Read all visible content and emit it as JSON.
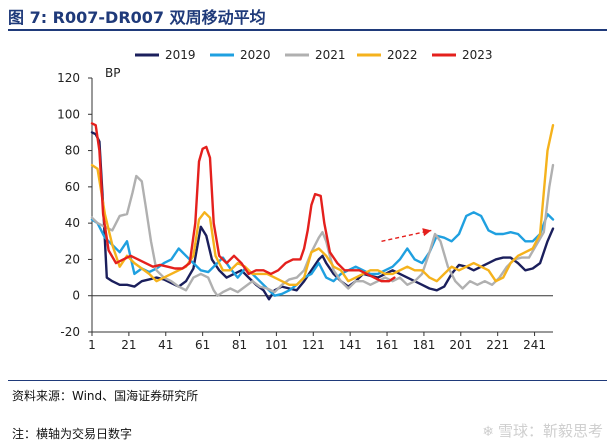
{
  "figure": {
    "title": "图 7:  R007-DR007 双周移动平均",
    "source": "资料来源：Wind、国海证券研究所",
    "note": "注：横轴为交易日数字",
    "watermark": "雪球：靳毅思考"
  },
  "chart_data": {
    "type": "line",
    "unit_label": "BP",
    "ylim": [
      -20,
      120
    ],
    "yticks": [
      -20,
      0,
      20,
      40,
      60,
      80,
      100,
      120
    ],
    "xlim": [
      1,
      251
    ],
    "xticks": [
      1,
      21,
      41,
      61,
      81,
      101,
      121,
      141,
      161,
      181,
      201,
      221,
      241
    ],
    "legend_position": "top",
    "series": [
      {
        "name": "2019",
        "color": "#1b1f5c",
        "points": [
          [
            1,
            90
          ],
          [
            3,
            89
          ],
          [
            5,
            85
          ],
          [
            7,
            50
          ],
          [
            9,
            10
          ],
          [
            12,
            8
          ],
          [
            16,
            6
          ],
          [
            20,
            6
          ],
          [
            24,
            5
          ],
          [
            28,
            8
          ],
          [
            32,
            9
          ],
          [
            36,
            10
          ],
          [
            40,
            9
          ],
          [
            44,
            7
          ],
          [
            48,
            5
          ],
          [
            52,
            8
          ],
          [
            56,
            15
          ],
          [
            60,
            38
          ],
          [
            63,
            33
          ],
          [
            66,
            20
          ],
          [
            70,
            14
          ],
          [
            74,
            10
          ],
          [
            78,
            12
          ],
          [
            82,
            14
          ],
          [
            86,
            10
          ],
          [
            90,
            6
          ],
          [
            94,
            3
          ],
          [
            97,
            -2
          ],
          [
            100,
            3
          ],
          [
            104,
            5
          ],
          [
            108,
            4
          ],
          [
            112,
            3
          ],
          [
            116,
            8
          ],
          [
            120,
            14
          ],
          [
            124,
            20
          ],
          [
            126,
            22
          ],
          [
            128,
            18
          ],
          [
            132,
            12
          ],
          [
            136,
            8
          ],
          [
            140,
            5
          ],
          [
            144,
            8
          ],
          [
            148,
            12
          ],
          [
            152,
            11
          ],
          [
            156,
            10
          ],
          [
            160,
            12
          ],
          [
            164,
            14
          ],
          [
            168,
            12
          ],
          [
            172,
            10
          ],
          [
            176,
            8
          ],
          [
            180,
            6
          ],
          [
            184,
            4
          ],
          [
            188,
            3
          ],
          [
            192,
            5
          ],
          [
            196,
            12
          ],
          [
            200,
            17
          ],
          [
            204,
            16
          ],
          [
            208,
            14
          ],
          [
            212,
            16
          ],
          [
            216,
            18
          ],
          [
            220,
            20
          ],
          [
            224,
            21
          ],
          [
            228,
            21
          ],
          [
            232,
            18
          ],
          [
            236,
            14
          ],
          [
            240,
            15
          ],
          [
            244,
            18
          ],
          [
            248,
            30
          ],
          [
            251,
            37
          ]
        ]
      },
      {
        "name": "2020",
        "color": "#1fa0e0",
        "points": [
          [
            1,
            42
          ],
          [
            4,
            40
          ],
          [
            8,
            32
          ],
          [
            12,
            28
          ],
          [
            16,
            24
          ],
          [
            20,
            30
          ],
          [
            24,
            12
          ],
          [
            28,
            15
          ],
          [
            32,
            13
          ],
          [
            36,
            15
          ],
          [
            40,
            18
          ],
          [
            44,
            20
          ],
          [
            48,
            26
          ],
          [
            52,
            22
          ],
          [
            56,
            18
          ],
          [
            60,
            14
          ],
          [
            64,
            13
          ],
          [
            68,
            17
          ],
          [
            72,
            21
          ],
          [
            76,
            15
          ],
          [
            80,
            10
          ],
          [
            84,
            15
          ],
          [
            88,
            12
          ],
          [
            92,
            8
          ],
          [
            96,
            4
          ],
          [
            100,
            0
          ],
          [
            104,
            1
          ],
          [
            108,
            3
          ],
          [
            112,
            6
          ],
          [
            116,
            10
          ],
          [
            120,
            12
          ],
          [
            124,
            18
          ],
          [
            128,
            10
          ],
          [
            132,
            8
          ],
          [
            136,
            12
          ],
          [
            140,
            14
          ],
          [
            144,
            16
          ],
          [
            148,
            14
          ],
          [
            152,
            12
          ],
          [
            156,
            12
          ],
          [
            160,
            14
          ],
          [
            164,
            16
          ],
          [
            168,
            20
          ],
          [
            172,
            26
          ],
          [
            176,
            20
          ],
          [
            180,
            18
          ],
          [
            184,
            24
          ],
          [
            188,
            33
          ],
          [
            192,
            32
          ],
          [
            196,
            30
          ],
          [
            200,
            34
          ],
          [
            204,
            44
          ],
          [
            208,
            46
          ],
          [
            212,
            44
          ],
          [
            216,
            36
          ],
          [
            220,
            34
          ],
          [
            224,
            34
          ],
          [
            228,
            35
          ],
          [
            232,
            34
          ],
          [
            236,
            30
          ],
          [
            240,
            30
          ],
          [
            244,
            34
          ],
          [
            248,
            45
          ],
          [
            251,
            42
          ]
        ]
      },
      {
        "name": "2021",
        "color": "#b0b0b0",
        "points": [
          [
            1,
            43
          ],
          [
            4,
            40
          ],
          [
            8,
            38
          ],
          [
            12,
            36
          ],
          [
            16,
            44
          ],
          [
            20,
            45
          ],
          [
            23,
            57
          ],
          [
            25,
            66
          ],
          [
            28,
            63
          ],
          [
            30,
            50
          ],
          [
            33,
            30
          ],
          [
            36,
            14
          ],
          [
            40,
            10
          ],
          [
            44,
            8
          ],
          [
            48,
            5
          ],
          [
            52,
            3
          ],
          [
            56,
            10
          ],
          [
            60,
            12
          ],
          [
            64,
            10
          ],
          [
            67,
            3
          ],
          [
            69,
            0
          ],
          [
            72,
            2
          ],
          [
            76,
            4
          ],
          [
            80,
            2
          ],
          [
            84,
            5
          ],
          [
            88,
            8
          ],
          [
            92,
            5
          ],
          [
            96,
            4
          ],
          [
            100,
            2
          ],
          [
            104,
            6
          ],
          [
            108,
            9
          ],
          [
            112,
            10
          ],
          [
            116,
            14
          ],
          [
            120,
            24
          ],
          [
            124,
            32
          ],
          [
            126,
            35
          ],
          [
            128,
            30
          ],
          [
            132,
            14
          ],
          [
            136,
            8
          ],
          [
            140,
            4
          ],
          [
            144,
            8
          ],
          [
            148,
            8
          ],
          [
            152,
            6
          ],
          [
            156,
            8
          ],
          [
            160,
            10
          ],
          [
            164,
            8
          ],
          [
            168,
            10
          ],
          [
            172,
            6
          ],
          [
            176,
            8
          ],
          [
            180,
            12
          ],
          [
            184,
            24
          ],
          [
            187,
            34
          ],
          [
            190,
            30
          ],
          [
            194,
            16
          ],
          [
            198,
            8
          ],
          [
            202,
            4
          ],
          [
            206,
            8
          ],
          [
            210,
            6
          ],
          [
            214,
            8
          ],
          [
            218,
            6
          ],
          [
            222,
            10
          ],
          [
            226,
            16
          ],
          [
            230,
            20
          ],
          [
            234,
            21
          ],
          [
            238,
            21
          ],
          [
            242,
            28
          ],
          [
            246,
            35
          ],
          [
            249,
            60
          ],
          [
            251,
            72
          ]
        ]
      },
      {
        "name": "2022",
        "color": "#f5b21c",
        "points": [
          [
            1,
            72
          ],
          [
            4,
            70
          ],
          [
            8,
            45
          ],
          [
            12,
            28
          ],
          [
            16,
            16
          ],
          [
            20,
            22
          ],
          [
            24,
            18
          ],
          [
            28,
            15
          ],
          [
            32,
            12
          ],
          [
            36,
            8
          ],
          [
            40,
            10
          ],
          [
            44,
            12
          ],
          [
            48,
            14
          ],
          [
            52,
            16
          ],
          [
            56,
            22
          ],
          [
            59,
            42
          ],
          [
            62,
            46
          ],
          [
            65,
            43
          ],
          [
            68,
            22
          ],
          [
            72,
            14
          ],
          [
            76,
            14
          ],
          [
            80,
            18
          ],
          [
            84,
            16
          ],
          [
            88,
            12
          ],
          [
            92,
            12
          ],
          [
            96,
            12
          ],
          [
            100,
            10
          ],
          [
            104,
            8
          ],
          [
            108,
            6
          ],
          [
            112,
            6
          ],
          [
            116,
            10
          ],
          [
            120,
            24
          ],
          [
            124,
            26
          ],
          [
            128,
            22
          ],
          [
            132,
            16
          ],
          [
            136,
            14
          ],
          [
            140,
            8
          ],
          [
            144,
            10
          ],
          [
            148,
            12
          ],
          [
            152,
            14
          ],
          [
            156,
            14
          ],
          [
            160,
            12
          ],
          [
            164,
            12
          ],
          [
            168,
            14
          ],
          [
            172,
            16
          ],
          [
            176,
            14
          ],
          [
            180,
            14
          ],
          [
            184,
            10
          ],
          [
            188,
            8
          ],
          [
            192,
            12
          ],
          [
            196,
            16
          ],
          [
            200,
            14
          ],
          [
            204,
            16
          ],
          [
            208,
            18
          ],
          [
            212,
            16
          ],
          [
            216,
            14
          ],
          [
            220,
            8
          ],
          [
            224,
            10
          ],
          [
            228,
            18
          ],
          [
            232,
            22
          ],
          [
            236,
            24
          ],
          [
            240,
            26
          ],
          [
            244,
            34
          ],
          [
            248,
            80
          ],
          [
            251,
            94
          ]
        ]
      },
      {
        "name": "2023",
        "color": "#e4201d",
        "points": [
          [
            1,
            95
          ],
          [
            3,
            94
          ],
          [
            5,
            80
          ],
          [
            7,
            45
          ],
          [
            10,
            25
          ],
          [
            14,
            18
          ],
          [
            18,
            20
          ],
          [
            22,
            22
          ],
          [
            26,
            20
          ],
          [
            30,
            18
          ],
          [
            34,
            16
          ],
          [
            38,
            17
          ],
          [
            42,
            16
          ],
          [
            46,
            15
          ],
          [
            50,
            15
          ],
          [
            54,
            18
          ],
          [
            57,
            40
          ],
          [
            59,
            74
          ],
          [
            61,
            81
          ],
          [
            63,
            82
          ],
          [
            65,
            76
          ],
          [
            67,
            40
          ],
          [
            70,
            22
          ],
          [
            74,
            18
          ],
          [
            78,
            22
          ],
          [
            82,
            18
          ],
          [
            86,
            12
          ],
          [
            90,
            14
          ],
          [
            94,
            14
          ],
          [
            98,
            12
          ],
          [
            102,
            14
          ],
          [
            106,
            18
          ],
          [
            110,
            20
          ],
          [
            114,
            20
          ],
          [
            116,
            26
          ],
          [
            118,
            36
          ],
          [
            120,
            50
          ],
          [
            122,
            56
          ],
          [
            125,
            55
          ],
          [
            127,
            40
          ],
          [
            130,
            24
          ],
          [
            134,
            18
          ],
          [
            138,
            14
          ],
          [
            142,
            14
          ],
          [
            146,
            14
          ],
          [
            150,
            12
          ],
          [
            154,
            10
          ],
          [
            158,
            8
          ],
          [
            162,
            8
          ],
          [
            165,
            10
          ]
        ]
      }
    ],
    "annotation": {
      "type": "arrow",
      "color": "#e4201d",
      "from": [
        158,
        30
      ],
      "to": [
        185,
        36
      ],
      "style": "dashed"
    }
  }
}
